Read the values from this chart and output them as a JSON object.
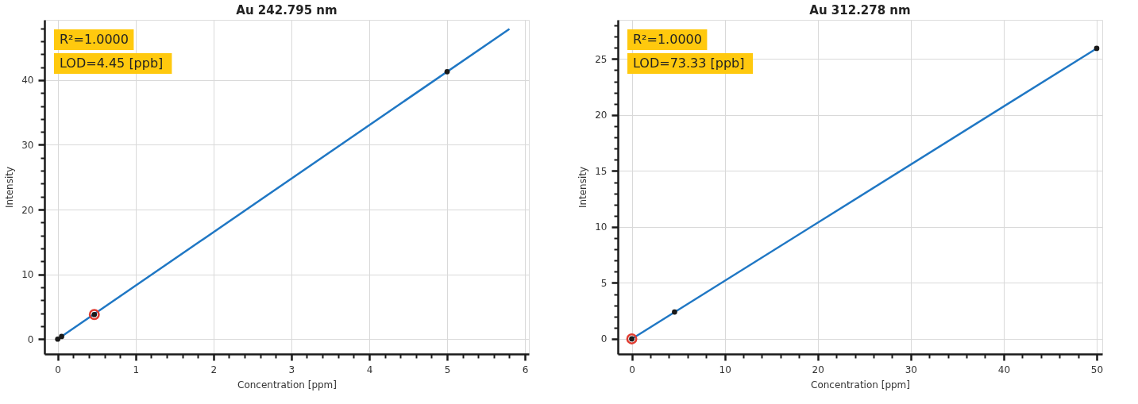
{
  "chart_data": [
    {
      "type": "scatter",
      "title": "Au 242.795 nm",
      "xlabel": "Concentration [ppm]",
      "ylabel": "Intensity",
      "annotations": [
        "R²=1.0000",
        "LOD=4.45 [ppb]"
      ],
      "xlim": [
        -0.17,
        6.05
      ],
      "ylim": [
        -2.3,
        49.3
      ],
      "grid": true,
      "marker": "circle",
      "line_style": "solid",
      "xticks": [
        0,
        {
          "value": 0.2,
          "label": null
        },
        {
          "value": 0.4,
          "label": null
        },
        {
          "value": 0.6,
          "label": null
        },
        {
          "value": 0.8,
          "label": null
        },
        1,
        {
          "value": 1.2,
          "label": null
        },
        {
          "value": 1.4,
          "label": null
        },
        {
          "value": 1.6,
          "label": null
        },
        {
          "value": 1.8,
          "label": null
        },
        2,
        {
          "value": 2.2,
          "label": null
        },
        {
          "value": 2.4,
          "label": null
        },
        {
          "value": 2.6,
          "label": null
        },
        {
          "value": 2.8,
          "label": null
        },
        3,
        {
          "value": 3.2,
          "label": null
        },
        {
          "value": 3.4,
          "label": null
        },
        {
          "value": 3.6,
          "label": null
        },
        {
          "value": 3.8,
          "label": null
        },
        4,
        {
          "value": 4.2,
          "label": null
        },
        {
          "value": 4.4,
          "label": null
        },
        {
          "value": 4.6,
          "label": null
        },
        {
          "value": 4.8,
          "label": null
        },
        5,
        {
          "value": 5.2,
          "label": null
        },
        {
          "value": 5.4,
          "label": null
        },
        {
          "value": 5.6,
          "label": null
        },
        {
          "value": 5.8,
          "label": null
        },
        6
      ],
      "yticks": [
        0,
        {
          "value": 2,
          "label": null
        },
        {
          "value": 4,
          "label": null
        },
        {
          "value": 6,
          "label": null
        },
        {
          "value": 8,
          "label": null
        },
        10,
        {
          "value": 12,
          "label": null
        },
        {
          "value": 14,
          "label": null
        },
        {
          "value": 16,
          "label": null
        },
        {
          "value": 18,
          "label": null
        },
        20,
        {
          "value": 22,
          "label": null
        },
        {
          "value": 24,
          "label": null
        },
        {
          "value": 26,
          "label": null
        },
        {
          "value": 28,
          "label": null
        },
        30,
        {
          "value": 32,
          "label": null
        },
        {
          "value": 34,
          "label": null
        },
        {
          "value": 36,
          "label": null
        },
        {
          "value": 38,
          "label": null
        },
        40,
        {
          "value": 42,
          "label": null
        },
        {
          "value": 44,
          "label": null
        },
        {
          "value": 46,
          "label": null
        },
        {
          "value": 48,
          "label": null
        }
      ],
      "series": [
        {
          "type": "line",
          "color": "#1f77c4",
          "marker": "none",
          "x": [
            0,
            5.8
          ],
          "values": [
            0,
            47.9
          ]
        },
        {
          "color": "#1a1a1a",
          "x": [
            0,
            0.05,
            0.47,
            5
          ],
          "values": [
            0,
            0.4,
            3.8,
            41.3
          ]
        },
        {
          "color": "#e03c31",
          "x": [
            0.47
          ],
          "values": [
            3.8
          ]
        }
      ]
    },
    {
      "type": "scatter",
      "title": "Au 312.278 nm",
      "xlabel": "Concentration [ppm]",
      "ylabel": "Intensity",
      "annotations": [
        "R²=1.0000",
        "LOD=73.33 [ppb]"
      ],
      "xlim": [
        -1.5,
        50.6
      ],
      "ylim": [
        -1.35,
        28.5
      ],
      "grid": true,
      "marker": "circle",
      "line_style": "solid",
      "xticks": [
        0,
        {
          "value": 2,
          "label": null
        },
        {
          "value": 4,
          "label": null
        },
        {
          "value": 6,
          "label": null
        },
        {
          "value": 8,
          "label": null
        },
        10,
        {
          "value": 12,
          "label": null
        },
        {
          "value": 14,
          "label": null
        },
        {
          "value": 16,
          "label": null
        },
        {
          "value": 18,
          "label": null
        },
        20,
        {
          "value": 22,
          "label": null
        },
        {
          "value": 24,
          "label": null
        },
        {
          "value": 26,
          "label": null
        },
        {
          "value": 28,
          "label": null
        },
        30,
        {
          "value": 32,
          "label": null
        },
        {
          "value": 34,
          "label": null
        },
        {
          "value": 36,
          "label": null
        },
        {
          "value": 38,
          "label": null
        },
        40,
        {
          "value": 42,
          "label": null
        },
        {
          "value": 44,
          "label": null
        },
        {
          "value": 46,
          "label": null
        },
        {
          "value": 48,
          "label": null
        },
        50
      ],
      "yticks": [
        0,
        {
          "value": 1,
          "label": null
        },
        {
          "value": 2,
          "label": null
        },
        {
          "value": 3,
          "label": null
        },
        {
          "value": 4,
          "label": null
        },
        5,
        {
          "value": 6,
          "label": null
        },
        {
          "value": 7,
          "label": null
        },
        {
          "value": 8,
          "label": null
        },
        {
          "value": 9,
          "label": null
        },
        10,
        {
          "value": 11,
          "label": null
        },
        {
          "value": 12,
          "label": null
        },
        {
          "value": 13,
          "label": null
        },
        {
          "value": 14,
          "label": null
        },
        15,
        {
          "value": 16,
          "label": null
        },
        {
          "value": 17,
          "label": null
        },
        {
          "value": 18,
          "label": null
        },
        {
          "value": 19,
          "label": null
        },
        20,
        {
          "value": 21,
          "label": null
        },
        {
          "value": 22,
          "label": null
        },
        {
          "value": 23,
          "label": null
        },
        {
          "value": 24,
          "label": null
        },
        25,
        {
          "value": 26,
          "label": null
        },
        {
          "value": 27,
          "label": null
        },
        {
          "value": 28,
          "label": null
        }
      ],
      "series": [
        {
          "type": "line",
          "color": "#1f77c4",
          "marker": "none",
          "x": [
            0,
            50
          ],
          "values": [
            0,
            25.95
          ]
        },
        {
          "color": "#1a1a1a",
          "x": [
            0,
            4.6,
            50
          ],
          "values": [
            0,
            2.4,
            25.95
          ]
        },
        {
          "color": "#e03c31",
          "x": [
            0
          ],
          "values": [
            0
          ]
        }
      ]
    }
  ]
}
